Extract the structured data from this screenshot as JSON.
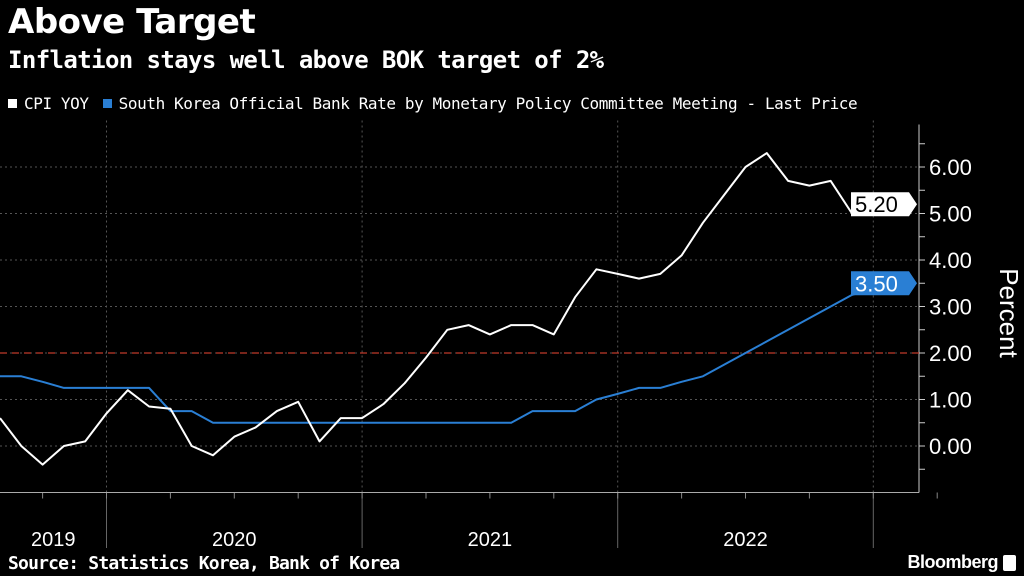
{
  "chart_data": {
    "type": "line",
    "title": "Above Target",
    "subtitle": "Inflation stays well above BOK target of 2%",
    "ylabel": "Percent",
    "xlabel": "",
    "ylim": [
      -1,
      7
    ],
    "yticks": [
      "0.00",
      "1.00",
      "2.00",
      "3.00",
      "4.00",
      "5.00",
      "6.00"
    ],
    "ytick_values": [
      0,
      1,
      2,
      3,
      4,
      5,
      6
    ],
    "year_labels": [
      "2019",
      "2020",
      "2021",
      "2022"
    ],
    "year_start_index": [
      5,
      17,
      29,
      41
    ],
    "x_start": "2019-08",
    "x_end": "2023-02",
    "legend_position": "top-left",
    "grid": true,
    "reference_line": {
      "value": 2.0,
      "label": "BOK target",
      "color": "#c0392b"
    },
    "series": [
      {
        "name": "CPI YOY",
        "color": "#ffffff",
        "last_label": "5.20",
        "values": [
          0.6,
          0.0,
          -0.4,
          0.0,
          0.1,
          0.7,
          1.2,
          0.85,
          0.8,
          0.0,
          -0.2,
          0.2,
          0.4,
          0.75,
          0.95,
          0.1,
          0.6,
          0.6,
          0.9,
          1.35,
          1.9,
          2.5,
          2.6,
          2.4,
          2.6,
          2.6,
          2.4,
          3.2,
          3.8,
          3.7,
          3.6,
          3.7,
          4.1,
          4.8,
          5.4,
          6.0,
          6.3,
          5.7,
          5.6,
          5.7,
          5.0,
          5.0,
          5.2
        ]
      },
      {
        "name": "South Korea Official Bank Rate by Monetary Policy Committee Meeting - Last Price",
        "color": "#2a7fd4",
        "last_label": "3.50",
        "values": [
          1.5,
          1.5,
          1.38,
          1.25,
          1.25,
          1.25,
          1.25,
          1.25,
          0.75,
          0.75,
          0.5,
          0.5,
          0.5,
          0.5,
          0.5,
          0.5,
          0.5,
          0.5,
          0.5,
          0.5,
          0.5,
          0.5,
          0.5,
          0.5,
          0.5,
          0.75,
          0.75,
          0.75,
          1.0,
          1.12,
          1.25,
          1.25,
          1.38,
          1.5,
          1.75,
          2.0,
          2.25,
          2.5,
          2.75,
          3.0,
          3.25,
          3.38,
          3.5
        ]
      }
    ]
  },
  "source": "Source: Statistics Korea, Bank of Korea",
  "brand": "Bloomberg"
}
